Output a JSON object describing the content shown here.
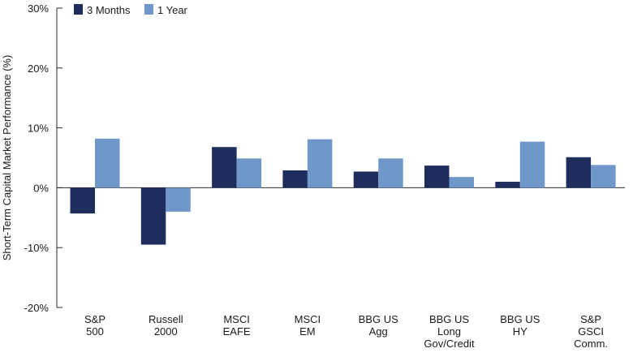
{
  "chart_data": {
    "type": "bar",
    "title": "",
    "xlabel": "",
    "ylabel": "Short-Term Capital Market Performance (%)",
    "ylim": [
      -20,
      30
    ],
    "yticks": [
      -20,
      -10,
      0,
      10,
      20,
      30
    ],
    "ytick_labels": [
      "-20%",
      "-10%",
      "0%",
      "10%",
      "20%",
      "30%"
    ],
    "categories": [
      [
        "S&P",
        "500"
      ],
      [
        "Russell",
        "2000"
      ],
      [
        "MSCI",
        "EAFE"
      ],
      [
        "MSCI",
        "EM"
      ],
      [
        "BBG US",
        "Agg"
      ],
      [
        "BBG US",
        "Long",
        "Gov/Credit"
      ],
      [
        "BBG US",
        "HY"
      ],
      [
        "S&P",
        "GSCI",
        "Comm."
      ]
    ],
    "series": [
      {
        "name": "3 Months",
        "color": "#1f2d5c",
        "values": [
          -4.3,
          -9.5,
          6.8,
          2.9,
          2.7,
          3.7,
          1.0,
          5.1
        ]
      },
      {
        "name": "1 Year",
        "color": "#7097c9",
        "values": [
          8.2,
          -4.0,
          4.9,
          8.1,
          4.9,
          1.8,
          7.7,
          3.8
        ]
      }
    ],
    "legend_position": "top-left",
    "grid": false
  }
}
